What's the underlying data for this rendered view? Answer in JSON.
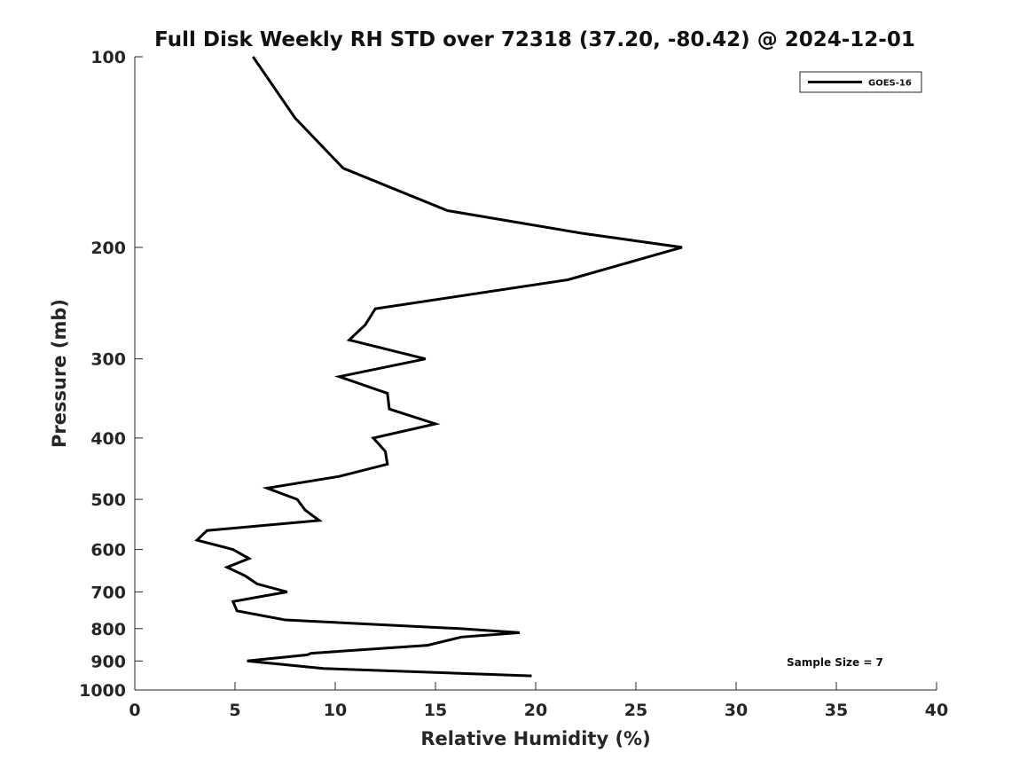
{
  "chart_data": {
    "type": "line",
    "title": "Full Disk Weekly RH STD over 72318 (37.20, -80.42) @ 2024-12-01",
    "xlabel": "Relative Humidity (%)",
    "ylabel": "Pressure (mb)",
    "xlim": [
      0,
      40
    ],
    "ylim": [
      100,
      1000
    ],
    "y_scale": "log",
    "y_reversed": true,
    "x_ticks": [
      0,
      5,
      10,
      15,
      20,
      25,
      30,
      35,
      40
    ],
    "x_tick_labels": [
      "0",
      "5",
      "10",
      "15",
      "20",
      "25",
      "30",
      "35",
      "40"
    ],
    "y_ticks": [
      100,
      200,
      300,
      400,
      500,
      600,
      700,
      800,
      900,
      1000
    ],
    "y_tick_labels": [
      "100",
      "200",
      "300",
      "400",
      "500",
      "600",
      "700",
      "800",
      "900",
      "1000"
    ],
    "grid": false,
    "legend_position": "top-right",
    "series": [
      {
        "name": "GOES-16",
        "color": "#000000",
        "x": [
          5.9,
          8.0,
          10.4,
          15.6,
          22.3,
          27.3,
          21.6,
          12.0,
          11.5,
          10.7,
          14.5,
          10.2,
          12.6,
          12.7,
          15.0,
          11.9,
          12.5,
          12.6,
          10.2,
          6.6,
          8.1,
          8.5,
          9.2,
          3.6,
          3.1,
          4.9,
          5.7,
          4.6,
          5.5,
          6.1,
          7.6,
          4.9,
          5.1,
          7.5,
          16.2,
          19.2,
          16.3,
          14.6,
          8.8,
          8.6,
          5.6,
          9.4,
          19.8
        ],
        "y": [
          100,
          125,
          150,
          175,
          190,
          200,
          225,
          250,
          265,
          280,
          300,
          320,
          340,
          360,
          380,
          400,
          420,
          440,
          460,
          480,
          500,
          520,
          540,
          560,
          580,
          600,
          620,
          640,
          660,
          680,
          700,
          725,
          750,
          775,
          800,
          812,
          825,
          850,
          875,
          880,
          900,
          925,
          950
        ]
      }
    ],
    "annotation": "Sample Size = 7"
  }
}
